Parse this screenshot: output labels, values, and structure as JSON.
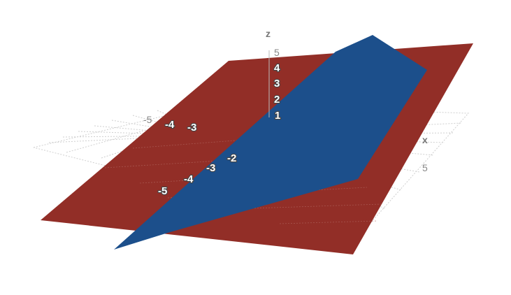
{
  "scene": {
    "axes": {
      "x": {
        "label": "x",
        "tick": "5"
      },
      "y": {
        "ticks": [
          "-5",
          "-4",
          "-3",
          "-2"
        ]
      },
      "z": {
        "label": "z",
        "ticks": [
          "5",
          "4",
          "3",
          "2",
          "1"
        ]
      },
      "back_ticks": [
        "-5",
        "-4",
        "-3"
      ]
    },
    "colors": {
      "plane_red": "#922e27",
      "plane_blue": "#1c4f8b",
      "grid": "#cfcfcf"
    }
  }
}
